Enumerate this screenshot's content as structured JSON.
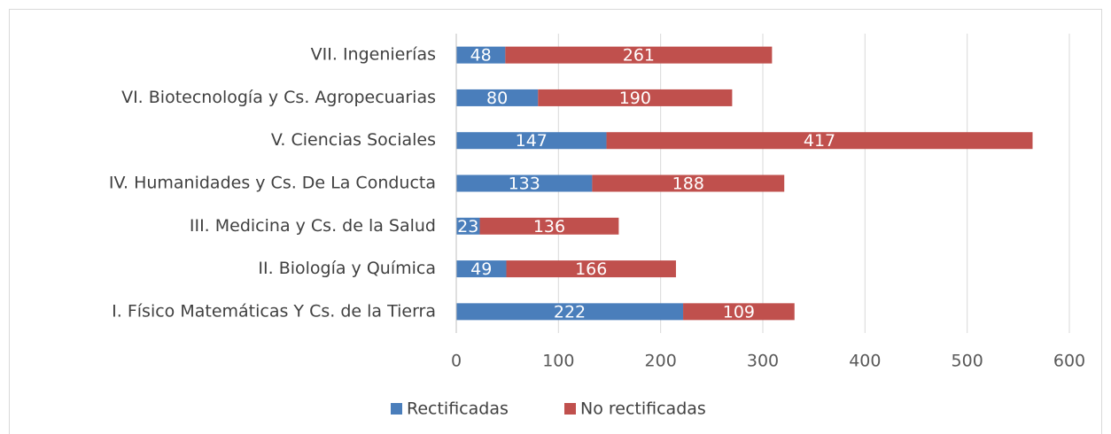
{
  "chart_data": {
    "type": "stacked-barh",
    "categories": [
      "I. Físico Matemáticas Y Cs. de la Tierra",
      "II. Biología y Química",
      "III. Medicina y Cs. de la Salud",
      "IV. Humanidades y Cs. De La Conducta",
      "V. Ciencias Sociales",
      "VI. Biotecnología y Cs. Agropecuarias",
      "VII. Ingenierías"
    ],
    "series": [
      {
        "name": "Rectificadas",
        "color": "#4a7ebb",
        "values": [
          222,
          49,
          23,
          133,
          147,
          80,
          48
        ]
      },
      {
        "name": "No rectificadas",
        "color": "#c0504d",
        "values": [
          109,
          166,
          136,
          188,
          417,
          190,
          261
        ]
      }
    ],
    "xlim": [
      0,
      600
    ],
    "xticks": [
      0,
      100,
      200,
      300,
      400,
      500,
      600
    ],
    "grid": true,
    "legend": "bottom"
  }
}
